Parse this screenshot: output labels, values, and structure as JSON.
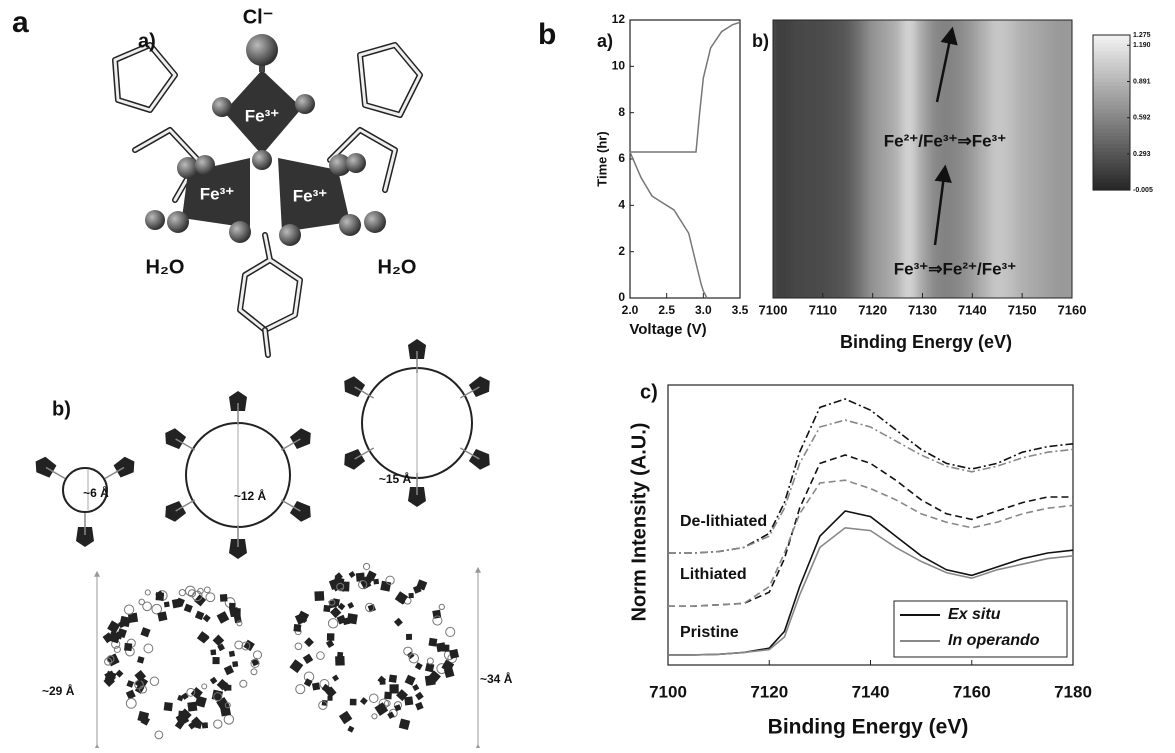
{
  "figure": {
    "panel_a": "a",
    "panel_b": "b",
    "structure_label": "a)",
    "cl": "Cl⁻",
    "fe": [
      "Fe³⁺",
      "Fe³⁺",
      "Fe³⁺"
    ],
    "water": [
      "H₂O",
      "H₂O"
    ],
    "cages_label": "b)",
    "pores": [
      "~6 Å",
      "~12 Å",
      "~15 Å"
    ],
    "cages": [
      "~29 Å",
      "~34 Å"
    ]
  },
  "chart_data": [
    {
      "type": "line",
      "label": "a)",
      "xlabel": "Voltage (V)",
      "ylabel": "Time (hr)",
      "color": "#777777",
      "x": [
        3.05,
        3.0,
        2.97,
        2.9,
        2.8,
        2.6,
        2.4,
        2.3,
        2.15,
        2.0,
        2.9,
        2.95,
        3.0,
        3.1,
        3.25,
        3.4,
        3.5
      ],
      "values": [
        0,
        0.3,
        0.6,
        1.5,
        2.8,
        3.8,
        4.2,
        4.4,
        5.2,
        6.3,
        6.3,
        8,
        9.5,
        10.8,
        11.5,
        11.8,
        11.9
      ],
      "xlim": [
        2,
        3.5
      ],
      "xticks": [
        {
          "value": 2,
          "label": "2.0"
        },
        2.5,
        {
          "value": 3,
          "label": "3.0"
        },
        3.5
      ],
      "ylim": [
        0,
        12
      ],
      "yticks": [
        0,
        2,
        4,
        6,
        8,
        10,
        12
      ]
    },
    {
      "type": "heatmap",
      "label": "b)",
      "xlabel": "Binding Energy (eV)",
      "x": [
        7100,
        7102.5,
        7105,
        7107.5,
        7110,
        7112.5,
        7115,
        7117.5,
        7120,
        7122.5,
        7125,
        7127.5,
        7130,
        7132.5,
        7135,
        7137.5,
        7140,
        7142.5,
        7145,
        7147.5,
        7150,
        7152.5,
        7155,
        7157.5,
        7160
      ],
      "values": [
        0.15,
        0.15,
        0.18,
        0.2,
        0.22,
        0.25,
        0.3,
        0.45,
        0.65,
        0.75,
        0.85,
        1.1,
        0.8,
        0.6,
        0.55,
        0.6,
        0.7,
        0.85,
        1.0,
        0.95,
        0.85,
        0.8,
        0.75,
        0.7,
        0.7
      ],
      "xlim": [
        7100,
        7160
      ],
      "xticks": [
        7100,
        7110,
        7120,
        7130,
        7140,
        7150,
        7160
      ],
      "clim": [
        -0.005,
        1.275
      ],
      "cticks": [
        1.275,
        {
          "value": 1.19,
          "label": "1.190"
        },
        0.891,
        0.592,
        0.293,
        -0.005
      ],
      "annotations": [
        "Fe²⁺/Fe³⁺⇒Fe³⁺",
        "Fe³⁺⇒Fe²⁺/Fe³⁺"
      ]
    },
    {
      "type": "line",
      "label": "c)",
      "xlabel": "Binding Energy (eV)",
      "ylabel": "Norm Intensity (A.U.)",
      "x": [
        7100,
        7105,
        7110,
        7115,
        7120,
        7123,
        7126,
        7130,
        7135,
        7140,
        7145,
        7150,
        7155,
        7160,
        7165,
        7170,
        7175,
        7180
      ],
      "xlim": [
        7100,
        7180
      ],
      "xticks": [
        7100,
        7120,
        7140,
        7160,
        7180
      ],
      "ylim": [
        0,
        10
      ],
      "legend": [
        {
          "name": "Ex situ",
          "color": "#111111"
        },
        {
          "name": "In operando",
          "color": "#888888"
        }
      ],
      "legend_position": "lower right",
      "groups": [
        {
          "label": "De-lithiated",
          "dash": "dashdot",
          "series": [
            {
              "values": [
                4.0,
                4.0,
                4.05,
                4.2,
                4.7,
                5.8,
                7.6,
                9.2,
                9.5,
                9.1,
                8.4,
                7.7,
                7.2,
                7.0,
                7.2,
                7.6,
                7.8,
                7.9
              ]
            },
            {
              "values": [
                4.0,
                4.0,
                4.05,
                4.2,
                4.6,
                5.6,
                7.2,
                8.5,
                8.75,
                8.5,
                8.0,
                7.5,
                7.1,
                6.9,
                7.1,
                7.4,
                7.6,
                7.7
              ]
            }
          ]
        },
        {
          "label": "Lithiated",
          "dash": "dashed",
          "series": [
            {
              "values": [
                2.1,
                2.1,
                2.15,
                2.2,
                2.6,
                3.8,
                5.6,
                7.2,
                7.5,
                7.2,
                6.6,
                5.9,
                5.4,
                5.2,
                5.5,
                5.8,
                6.0,
                6.0
              ]
            },
            {
              "values": [
                2.1,
                2.1,
                2.15,
                2.2,
                2.8,
                4.0,
                5.4,
                6.5,
                6.6,
                6.3,
                5.9,
                5.4,
                5.1,
                4.9,
                5.1,
                5.4,
                5.6,
                5.7
              ]
            }
          ]
        },
        {
          "label": "Pristine",
          "dash": "solid",
          "series": [
            {
              "values": [
                0.36,
                0.36,
                0.38,
                0.45,
                0.6,
                1.2,
                2.8,
                4.6,
                5.5,
                5.3,
                4.6,
                3.9,
                3.4,
                3.2,
                3.5,
                3.8,
                4.0,
                4.1
              ]
            },
            {
              "values": [
                0.36,
                0.36,
                0.38,
                0.45,
                0.55,
                1.0,
                2.5,
                4.2,
                4.9,
                4.8,
                4.2,
                3.7,
                3.3,
                3.1,
                3.4,
                3.6,
                3.8,
                3.9
              ]
            }
          ]
        }
      ]
    }
  ]
}
